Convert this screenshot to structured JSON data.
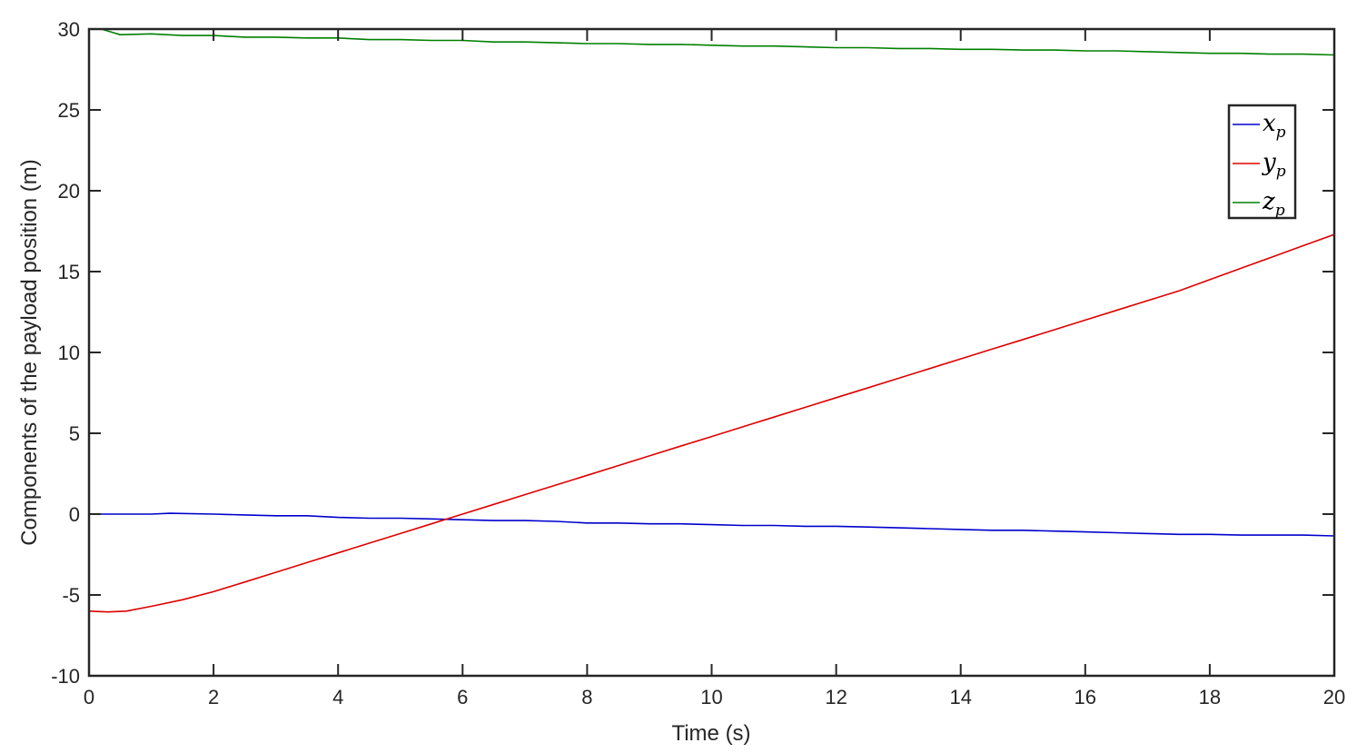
{
  "chart_data": {
    "type": "line",
    "title": "",
    "xlabel": "Time (s)",
    "ylabel": "Components of the payload position (m)",
    "xlim": [
      0,
      20
    ],
    "ylim": [
      -10,
      30
    ],
    "xticks": [
      "0",
      "2",
      "4",
      "6",
      "8",
      "10",
      "12",
      "14",
      "16",
      "18",
      "20"
    ],
    "yticks": [
      "-10",
      "-5",
      "0",
      "5",
      "10",
      "15",
      "20",
      "25",
      "30"
    ],
    "grid": false,
    "legend_position": "top-right",
    "series": [
      {
        "name": "x_p",
        "label_base": "x",
        "label_sub": "p",
        "color": "#0000cc",
        "x": [
          0,
          0.5,
          1,
          1.3,
          2,
          2.5,
          3,
          3.5,
          4,
          4.5,
          5,
          5.5,
          6,
          6.5,
          7,
          7.5,
          8,
          8.5,
          9,
          9.5,
          10,
          10.5,
          11,
          11.5,
          12,
          12.5,
          13,
          13.5,
          14,
          14.5,
          15,
          15.5,
          16,
          16.5,
          17,
          17.5,
          18,
          18.5,
          19,
          19.5,
          20
        ],
        "y": [
          0,
          0,
          0,
          0.05,
          0,
          -0.05,
          -0.1,
          -0.1,
          -0.2,
          -0.25,
          -0.25,
          -0.3,
          -0.35,
          -0.4,
          -0.4,
          -0.45,
          -0.55,
          -0.55,
          -0.6,
          -0.6,
          -0.65,
          -0.7,
          -0.7,
          -0.75,
          -0.75,
          -0.8,
          -0.85,
          -0.9,
          -0.95,
          -1.0,
          -1.0,
          -1.05,
          -1.1,
          -1.15,
          -1.2,
          -1.25,
          -1.25,
          -1.3,
          -1.3,
          -1.3,
          -1.35
        ]
      },
      {
        "name": "y_p",
        "label_base": "y",
        "label_sub": "p",
        "color": "#dd0000",
        "x": [
          0,
          0.3,
          0.6,
          1,
          1.5,
          2,
          2.5,
          3,
          3.5,
          4,
          4.5,
          5,
          5.5,
          6,
          6.5,
          7,
          7.5,
          8,
          8.5,
          9,
          9.5,
          10,
          10.5,
          11,
          11.5,
          12,
          12.5,
          13,
          13.5,
          14,
          14.5,
          15,
          15.5,
          16,
          16.5,
          17,
          17.5,
          18,
          18.5,
          19,
          19.5,
          20
        ],
        "y": [
          -6.0,
          -6.05,
          -6.0,
          -5.7,
          -5.3,
          -4.8,
          -4.2,
          -3.6,
          -3.0,
          -2.4,
          -1.8,
          -1.2,
          -0.6,
          0.0,
          0.6,
          1.2,
          1.8,
          2.4,
          3.0,
          3.6,
          4.2,
          4.8,
          5.4,
          6.0,
          6.6,
          7.2,
          7.8,
          8.4,
          9.0,
          9.6,
          10.2,
          10.8,
          11.4,
          12.0,
          12.6,
          13.2,
          13.8,
          14.5,
          15.2,
          15.9,
          16.6,
          17.3
        ]
      },
      {
        "name": "z_p",
        "label_base": "z",
        "label_sub": "p",
        "color": "#008000",
        "x": [
          0,
          0.2,
          0.5,
          1,
          1.5,
          2,
          2.5,
          3,
          3.5,
          4,
          4.5,
          5,
          5.5,
          6,
          6.5,
          7,
          7.5,
          8,
          8.5,
          9,
          9.5,
          10,
          10.5,
          11,
          11.5,
          12,
          12.5,
          13,
          13.5,
          14,
          14.5,
          15,
          15.5,
          16,
          16.5,
          17,
          17.5,
          18,
          18.5,
          19,
          19.5,
          20
        ],
        "y": [
          30.0,
          30.0,
          29.65,
          29.7,
          29.6,
          29.6,
          29.5,
          29.5,
          29.45,
          29.45,
          29.35,
          29.35,
          29.3,
          29.3,
          29.2,
          29.2,
          29.15,
          29.1,
          29.1,
          29.05,
          29.05,
          29.0,
          28.95,
          28.95,
          28.9,
          28.85,
          28.85,
          28.8,
          28.8,
          28.75,
          28.75,
          28.7,
          28.7,
          28.65,
          28.65,
          28.6,
          28.55,
          28.5,
          28.5,
          28.45,
          28.45,
          28.4
        ]
      }
    ]
  }
}
